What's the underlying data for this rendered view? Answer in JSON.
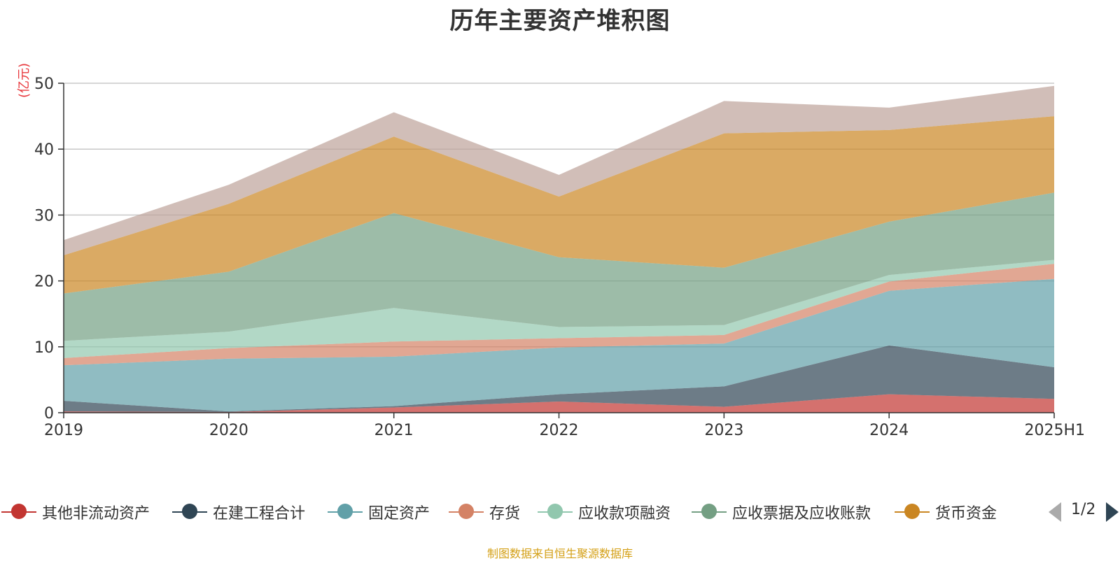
{
  "chart_data": {
    "type": "area",
    "stacked": true,
    "title": "历年主要资产堆积图",
    "ylabel": "(亿元)",
    "ylim": [
      0,
      50
    ],
    "yticks": [
      0,
      10,
      20,
      30,
      40,
      50
    ],
    "grid": true,
    "legend_position": "bottom",
    "categories": [
      "2019",
      "2020",
      "2021",
      "2022",
      "2023",
      "2024",
      "2025H1"
    ],
    "series": [
      {
        "name": "其他非流动资产",
        "color": "#c23531",
        "values": [
          0.2,
          0.1,
          0.8,
          1.7,
          0.9,
          2.8,
          2.1
        ]
      },
      {
        "name": "在建工程合计",
        "color": "#2f4554",
        "values": [
          1.6,
          0.1,
          0.2,
          1.1,
          3.1,
          7.4,
          4.8
        ]
      },
      {
        "name": "固定资产",
        "color": "#61a0a8",
        "values": [
          5.4,
          8.0,
          7.5,
          7.1,
          6.5,
          8.3,
          13.4
        ]
      },
      {
        "name": "存货",
        "color": "#d48265",
        "values": [
          1.1,
          1.6,
          2.3,
          1.4,
          1.3,
          1.4,
          2.3
        ]
      },
      {
        "name": "应收款项融资",
        "color": "#91c7ae",
        "values": [
          2.6,
          2.5,
          5.1,
          1.7,
          1.5,
          1.0,
          0.6
        ]
      },
      {
        "name": "应收票据及应收账款",
        "color": "#749f83",
        "values": [
          7.2,
          9.1,
          14.4,
          10.6,
          8.7,
          8.1,
          10.2
        ]
      },
      {
        "name": "货币资金",
        "color": "#ca8622",
        "values": [
          5.8,
          10.3,
          11.6,
          9.2,
          20.4,
          13.9,
          11.6
        ]
      },
      {
        "name": "",
        "color": "#bda29a",
        "values": [
          2.3,
          2.9,
          3.7,
          3.3,
          4.9,
          3.4,
          4.6
        ]
      }
    ]
  },
  "legend": {
    "items": [
      {
        "label": "其他非流动资产",
        "color": "#c23531"
      },
      {
        "label": "在建工程合计",
        "color": "#2f4554"
      },
      {
        "label": "固定资产",
        "color": "#61a0a8"
      },
      {
        "label": "存货",
        "color": "#d48265"
      },
      {
        "label": "应收款项融资",
        "color": "#91c7ae"
      },
      {
        "label": "应收票据及应收账款",
        "color": "#749f83"
      },
      {
        "label": "货币资金",
        "color": "#ca8622"
      }
    ],
    "page": "1/2"
  },
  "source": "制图数据来自恒生聚源数据库"
}
